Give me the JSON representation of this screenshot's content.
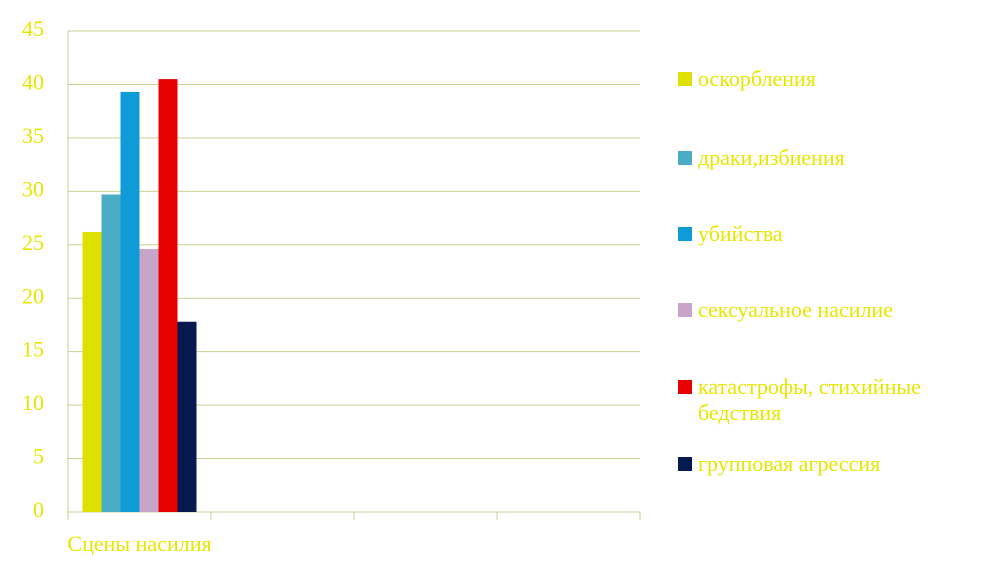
{
  "chart_data": {
    "type": "bar",
    "categories": [
      "Сцены насилия",
      null,
      null,
      null
    ],
    "series": [
      {
        "name": "оскорбления",
        "color": "#e0e000",
        "values": [
          26.2,
          null,
          null,
          null
        ]
      },
      {
        "name": "драки,избиения",
        "color": "#4bacc6",
        "values": [
          29.7,
          null,
          null,
          null
        ]
      },
      {
        "name": "убийства",
        "color": "#0f9ad8",
        "values": [
          39.3,
          null,
          null,
          null
        ]
      },
      {
        "name": "сексуальное насилие",
        "color": "#c9a4c9",
        "values": [
          24.6,
          null,
          null,
          null
        ]
      },
      {
        "name": "катастрофы, стихийные бедствия",
        "color": "#e60000",
        "values": [
          40.5,
          null,
          null,
          null
        ]
      },
      {
        "name": "групповая агрессия",
        "color": "#061a50",
        "values": [
          17.8,
          null,
          null,
          null
        ]
      }
    ],
    "ylim": [
      0,
      45
    ],
    "yticks": [
      0,
      5,
      10,
      15,
      20,
      25,
      30,
      35,
      40,
      45
    ],
    "grid": true,
    "legend": "right"
  }
}
